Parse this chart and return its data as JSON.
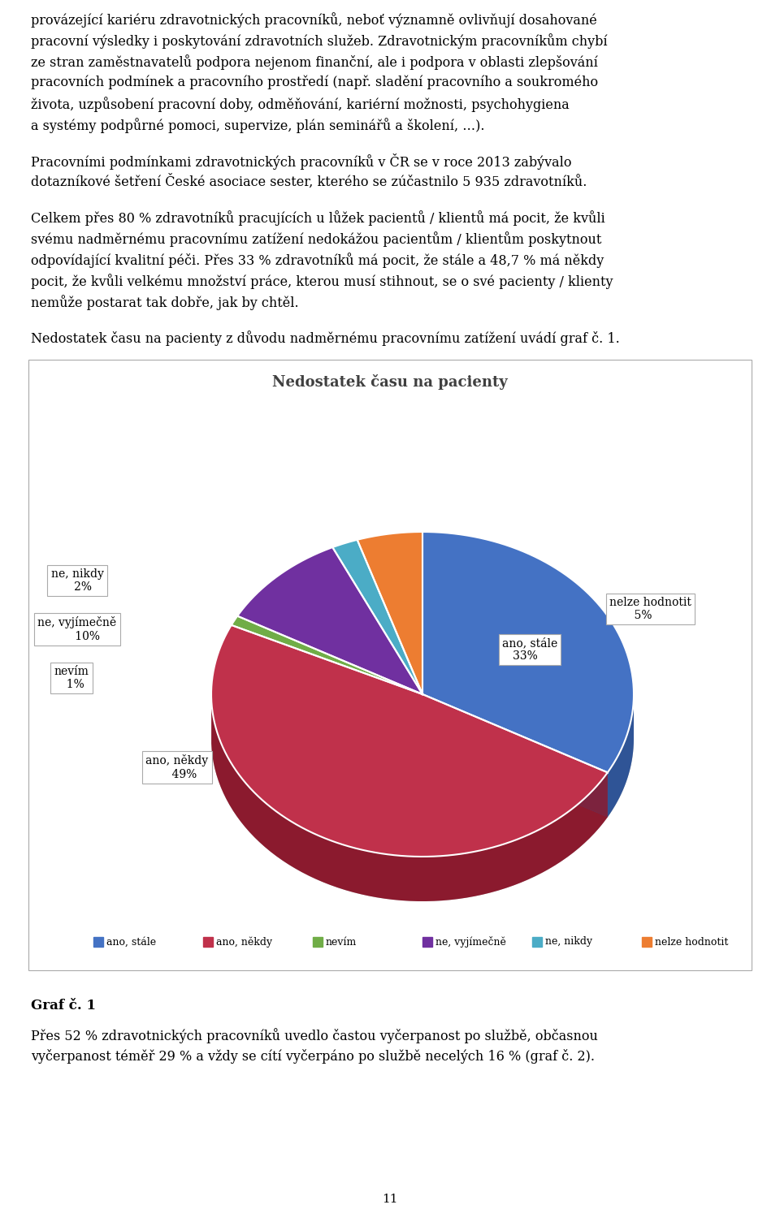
{
  "title": "Nedostatek času na pacienty",
  "slices": [
    33,
    49,
    1,
    10,
    2,
    5
  ],
  "labels": [
    "ano, stále",
    "ano, někdy",
    "nevím",
    "ne, vyjímečně",
    "ne, nikdy",
    "nelze hodnotit"
  ],
  "colors": [
    "#4472C4",
    "#C0314B",
    "#70AD47",
    "#7030A0",
    "#4BACC6",
    "#ED7D31"
  ],
  "dark_colors": [
    "#2F5496",
    "#8B1A2E",
    "#507E32",
    "#4E1E74",
    "#2E7A96",
    "#A85720"
  ],
  "legend_labels": [
    "ano, stále",
    "ano, někdy",
    "nevím",
    "ne, vyjímečně",
    "ne, nikdy",
    "nelze hodnotit"
  ],
  "footer_label": "Graf č. 1",
  "page_number": "11",
  "para1": "provozívající kariéru zdravotnických pracovníků, neboť významně ovlivňují dosahoované pracovní výsledky i poskytování zdravotních služeb. Zdravotnickým pracovníkům chybí ze stran zaměstnavatelů podpora nejenom finanční, ale i podpora v oblasti zlepšování pracovních podmínek a pracovního prostředí (např. sladění pracovního a soukromého života, uzpůsobení pracovní doby, odměňování, kariérní možnosti, psychohygiena a systémy podpůrné pomoci, supervize, plán seminářů a školení, …).",
  "para2": "Pracovními podmínkami zdravotnických pracovníků v ČR se v roce 2013 zabývalo dotazníkové šetření České asociace sester, kterého se zúčastnilo 5 935 zdravotníků.",
  "para3": "Celkem přes 80 % zdravotníků pracujících u lůžek pacientů / klientů má pocit, že kvůli svému nadměrnému pracovnímu zatížení nedokážou pacientům / klientům poskytnout odpovídající kvalitní péči. Přes 33 % zdravotníků má pocit, že stále a 48,7 % má někdy pocit, že kvůli velkému množství práce, kterou musí stihnout, se o své pacienty / klienty nemůže postarat tak dobře, jak by chtěl.",
  "para4": "Nedostatek času na pacienty z důvodu nadměrnému pracovnímu zatížení uvádí graf č. 1.",
  "footer_text_line1": "Přes 52 % zdravotnických pracovníků uvedlo častou vyčerpanost po službě, občasnou",
  "footer_text_line2": "vyčerpanost téměř 29 % a vždy se cítí vyčerpáno po službě necelých 16 % (graf č. 2)."
}
